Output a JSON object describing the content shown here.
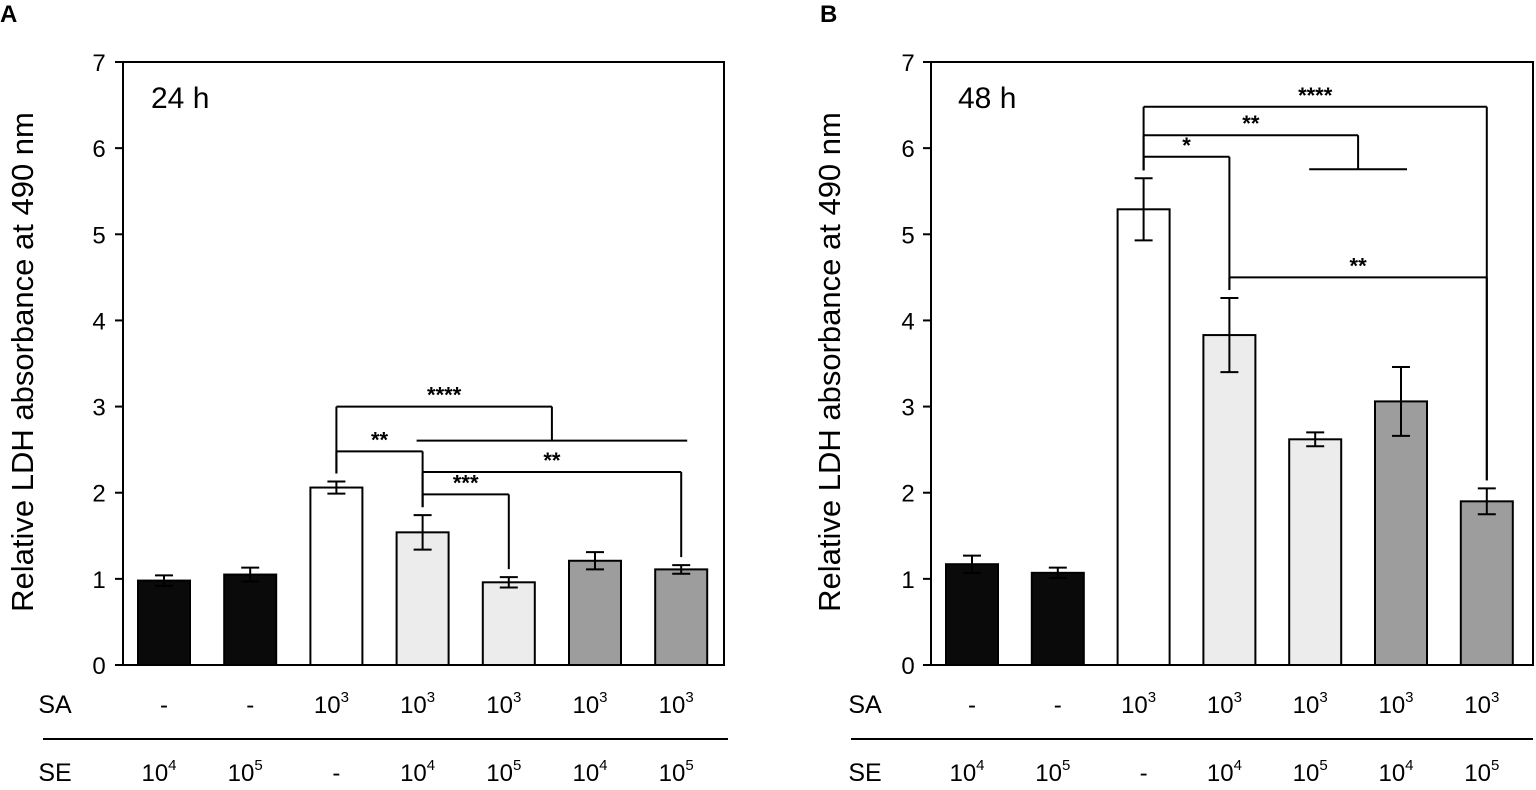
{
  "chart_data": [
    {
      "type": "bar",
      "panel": "A",
      "title": "24 h",
      "ylabel": "Relative LDH absorbance at 490 nm",
      "ylim": [
        0,
        7
      ],
      "yticks": [
        "0",
        "1",
        "2",
        "3",
        "4",
        "5",
        "6",
        "7"
      ],
      "rows": [
        {
          "label": "SA",
          "values": [
            [
              "-",
              ""
            ],
            [
              "-",
              ""
            ],
            [
              "10",
              "3"
            ],
            [
              "10",
              "3"
            ],
            [
              "10",
              "3"
            ],
            [
              "10",
              "3"
            ],
            [
              "10",
              "3"
            ]
          ]
        },
        {
          "label": "SE",
          "values": [
            [
              "10",
              "4"
            ],
            [
              "10",
              "5"
            ],
            [
              "-",
              ""
            ],
            [
              "10",
              "4"
            ],
            [
              "10",
              "5"
            ],
            [
              "10",
              "4"
            ],
            [
              "10",
              "5"
            ]
          ]
        }
      ],
      "values": [
        0.98,
        1.05,
        2.06,
        1.54,
        0.96,
        1.21,
        1.11
      ],
      "errors": [
        0.06,
        0.08,
        0.07,
        0.2,
        0.06,
        0.1,
        0.05
      ],
      "colors": [
        "#0a0a0a",
        "#0a0a0a",
        "#ffffff",
        "#ececec",
        "#ececec",
        "#9d9d9d",
        "#9d9d9d"
      ],
      "significance": [
        {
          "label": "****",
          "kind": "group",
          "from": 2,
          "to_group": [
            3,
            6
          ],
          "y": 3.0
        },
        {
          "label": "**",
          "kind": "pair",
          "from": 2,
          "to": 3,
          "y": 2.48
        },
        {
          "label": "***",
          "kind": "pair",
          "from": 3,
          "to": 4,
          "y": 1.98
        },
        {
          "label": "**",
          "kind": "pair",
          "from": 3,
          "to": 6,
          "y": 2.24
        }
      ]
    },
    {
      "type": "bar",
      "panel": "B",
      "title": "48 h",
      "ylabel": "Relative LDH absorbance at 490 nm",
      "ylim": [
        0,
        7
      ],
      "yticks": [
        "0",
        "1",
        "2",
        "3",
        "4",
        "5",
        "6",
        "7"
      ],
      "rows": [
        {
          "label": "SA",
          "values": [
            [
              "-",
              ""
            ],
            [
              "-",
              ""
            ],
            [
              "10",
              "3"
            ],
            [
              "10",
              "3"
            ],
            [
              "10",
              "3"
            ],
            [
              "10",
              "3"
            ],
            [
              "10",
              "3"
            ]
          ]
        },
        {
          "label": "SE",
          "values": [
            [
              "10",
              "4"
            ],
            [
              "10",
              "5"
            ],
            [
              "-",
              ""
            ],
            [
              "10",
              "4"
            ],
            [
              "10",
              "5"
            ],
            [
              "10",
              "4"
            ],
            [
              "10",
              "5"
            ]
          ]
        }
      ],
      "values": [
        1.17,
        1.07,
        5.29,
        3.83,
        2.62,
        3.06,
        1.9
      ],
      "errors": [
        0.1,
        0.06,
        0.36,
        0.43,
        0.08,
        0.4,
        0.15
      ],
      "colors": [
        "#0a0a0a",
        "#0a0a0a",
        "#ffffff",
        "#ececec",
        "#ececec",
        "#9d9d9d",
        "#9d9d9d"
      ],
      "significance": [
        {
          "label": "****",
          "kind": "pair",
          "from": 2,
          "to": 6,
          "y": 6.48
        },
        {
          "label": "**",
          "kind": "group",
          "from": 2,
          "to_group": [
            4,
            5
          ],
          "y": 6.15
        },
        {
          "label": "*",
          "kind": "pair",
          "from": 2,
          "to": 3,
          "y": 5.9
        },
        {
          "label": "**",
          "kind": "pair",
          "from": 3,
          "to": 6,
          "y": 4.5
        }
      ]
    }
  ]
}
